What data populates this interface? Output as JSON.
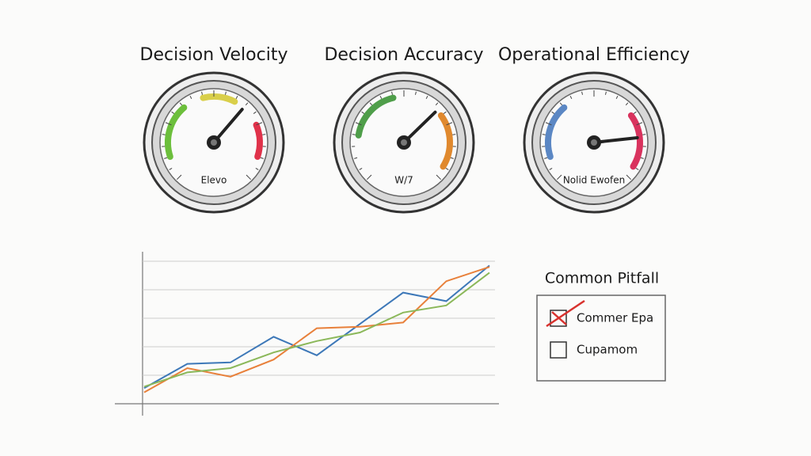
{
  "chart_data": [
    {
      "type": "gauge",
      "title": "Decision Velocity",
      "label": "Elevo",
      "ylim": [
        0,
        100
      ],
      "value": 65,
      "needle_color": "#222222",
      "zones": [
        {
          "from": 10,
          "to": 35,
          "color": "#6cbf3c"
        },
        {
          "from": 45,
          "to": 60,
          "color": "#d9cf4a"
        },
        {
          "from": 75,
          "to": 90,
          "color": "#e0324a"
        }
      ]
    },
    {
      "type": "gauge",
      "title": "Decision Accuracy",
      "label": "W/7",
      "ylim": [
        0,
        100
      ],
      "value": 67,
      "needle_color": "#222222",
      "zones": [
        {
          "from": 20,
          "to": 45,
          "color": "#4f9e4a"
        },
        {
          "from": 70,
          "to": 95,
          "color": "#e0892e"
        }
      ]
    },
    {
      "type": "gauge",
      "title": "Operational Efficiency",
      "label": "Nolid Ewofen",
      "ylim": [
        0,
        100
      ],
      "value": 81,
      "needle_color": "#222222",
      "zones": [
        {
          "from": 10,
          "to": 35,
          "color": "#5b87c4"
        },
        {
          "from": 70,
          "to": 95,
          "color": "#d9335e"
        }
      ]
    },
    {
      "type": "line",
      "categories": [
        null,
        null,
        null,
        null,
        null,
        null,
        null,
        null,
        null
      ],
      "ylim": [
        0,
        100
      ],
      "grid": true,
      "series": [
        {
          "color": "#3d78b8",
          "values": [
            11,
            28,
            29,
            47,
            34,
            56,
            78,
            72,
            97
          ]
        },
        {
          "color": "#e8803a",
          "values": [
            8,
            25,
            19,
            31,
            53,
            54,
            57,
            86,
            96
          ]
        },
        {
          "color": "#8bb85a",
          "values": [
            12,
            22,
            25,
            36,
            44,
            50,
            64,
            69,
            92
          ]
        }
      ]
    }
  ],
  "panel": {
    "title": "Common Pitfall",
    "items": [
      {
        "label": "Commer Epa",
        "checked": true
      },
      {
        "label": "Cupamom",
        "checked": false
      }
    ]
  }
}
